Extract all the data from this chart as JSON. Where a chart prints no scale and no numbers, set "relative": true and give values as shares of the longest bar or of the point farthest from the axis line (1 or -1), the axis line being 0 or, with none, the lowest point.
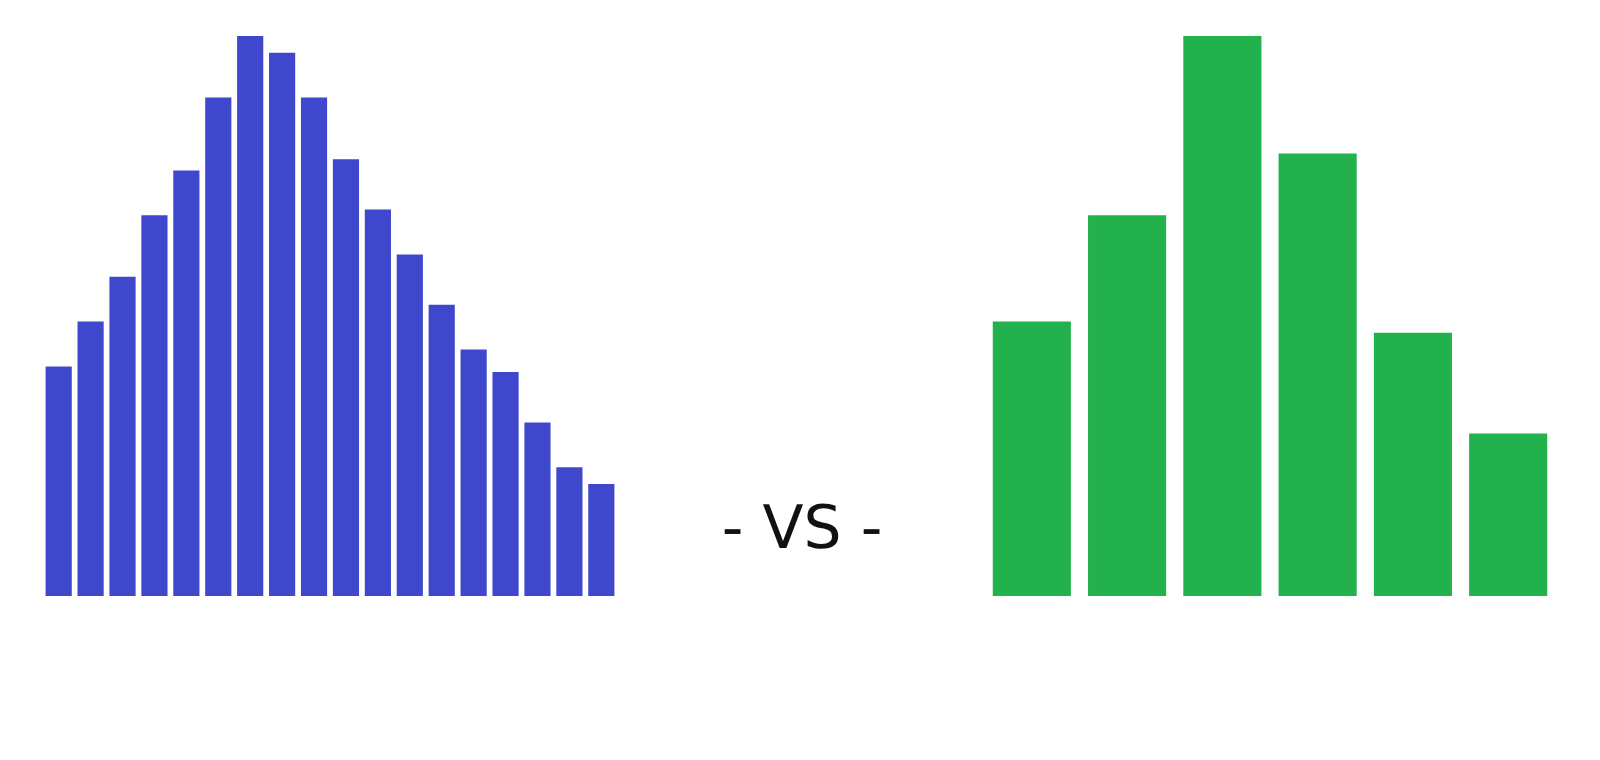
{
  "chart_data": [
    {
      "type": "bar",
      "relative": true,
      "annotations": [
        "- VS -"
      ],
      "categories": [
        null,
        null,
        null,
        null,
        null,
        null,
        null,
        null,
        null,
        null,
        null,
        null,
        null,
        null,
        null,
        null,
        null,
        null
      ],
      "series": [
        {
          "color": "#3f48cc",
          "values": [
            0.41,
            0.49,
            0.57,
            0.68,
            0.76,
            0.89,
            1,
            0.97,
            0.89,
            0.78,
            0.69,
            0.61,
            0.52,
            0.44,
            0.4,
            0.31,
            0.23,
            0.2
          ]
        }
      ]
    },
    {
      "type": "bar",
      "relative": true,
      "categories": [
        null,
        null,
        null,
        null,
        null,
        null
      ],
      "series": [
        {
          "color": "#22b14c",
          "values": [
            0.49,
            0.68,
            1,
            0.79,
            0.47,
            0.29
          ]
        }
      ]
    }
  ]
}
